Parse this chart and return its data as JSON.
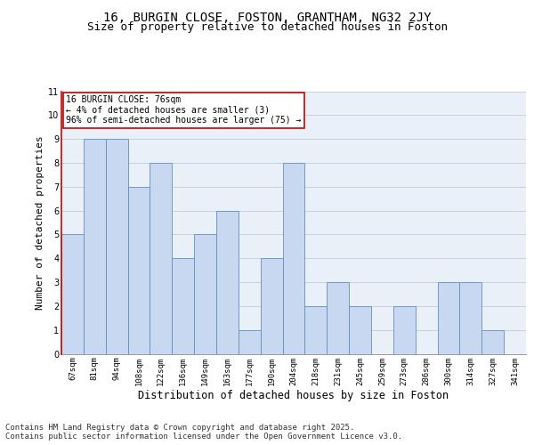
{
  "title_line1": "16, BURGIN CLOSE, FOSTON, GRANTHAM, NG32 2JY",
  "title_line2": "Size of property relative to detached houses in Foston",
  "xlabel": "Distribution of detached houses by size in Foston",
  "ylabel": "Number of detached properties",
  "categories": [
    "67sqm",
    "81sqm",
    "94sqm",
    "108sqm",
    "122sqm",
    "136sqm",
    "149sqm",
    "163sqm",
    "177sqm",
    "190sqm",
    "204sqm",
    "218sqm",
    "231sqm",
    "245sqm",
    "259sqm",
    "273sqm",
    "286sqm",
    "300sqm",
    "314sqm",
    "327sqm",
    "341sqm"
  ],
  "values": [
    5,
    9,
    9,
    7,
    8,
    4,
    5,
    6,
    1,
    4,
    8,
    2,
    3,
    2,
    0,
    2,
    0,
    3,
    3,
    1,
    0
  ],
  "bar_color": "#c8d8f0",
  "bar_edgecolor": "#6090c0",
  "highlight_color": "#cc0000",
  "ylim": [
    0,
    11
  ],
  "yticks": [
    0,
    1,
    2,
    3,
    4,
    5,
    6,
    7,
    8,
    9,
    10,
    11
  ],
  "annotation_text": "16 BURGIN CLOSE: 76sqm\n← 4% of detached houses are smaller (3)\n96% of semi-detached houses are larger (75) →",
  "annotation_box_color": "#cc0000",
  "footer_text": "Contains HM Land Registry data © Crown copyright and database right 2025.\nContains public sector information licensed under the Open Government Licence v3.0.",
  "bg_color": "#eaf0f8",
  "grid_color": "#c0ccd8",
  "title_fontsize": 10,
  "subtitle_fontsize": 9,
  "axis_label_fontsize": 8,
  "tick_fontsize": 6.5,
  "annotation_fontsize": 7,
  "footer_fontsize": 6.5
}
